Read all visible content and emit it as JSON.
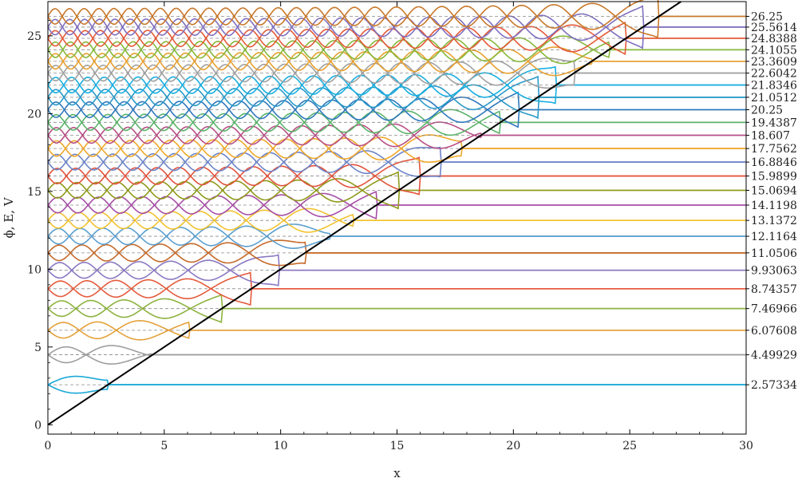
{
  "chart_data": {
    "type": "line",
    "title": "",
    "xlabel": "x",
    "ylabel": "ϕ, E, V",
    "xlim": [
      0,
      30
    ],
    "ylim": [
      -0.6,
      27.2
    ],
    "xticks": [
      "0",
      "5",
      "10",
      "15",
      "20",
      "25",
      "30"
    ],
    "yticks": [
      "0",
      "5",
      "10",
      "15",
      "20",
      "25"
    ],
    "potential": {
      "type": "linear",
      "x": [
        0,
        27.2
      ],
      "y": [
        0,
        27.2
      ],
      "color": "#000000"
    },
    "energy_levels": [
      {
        "label": "2.57334",
        "value": 2.57334,
        "color": "#1aa8d8"
      },
      {
        "label": "4.49929",
        "value": 4.49929,
        "color": "#9e9e9e"
      },
      {
        "label": "6.07608",
        "value": 6.07608,
        "color": "#e5a13a"
      },
      {
        "label": "7.46966",
        "value": 7.46966,
        "color": "#8db33f"
      },
      {
        "label": "8.74357",
        "value": 8.74357,
        "color": "#e55a3c"
      },
      {
        "label": "9.93063",
        "value": 9.93063,
        "color": "#8a78c2"
      },
      {
        "label": "11.0506",
        "value": 11.0506,
        "color": "#c56a2a"
      },
      {
        "label": "12.1164",
        "value": 12.1164,
        "color": "#5b9fce"
      },
      {
        "label": "13.1372",
        "value": 13.1372,
        "color": "#f2c230"
      },
      {
        "label": "14.1198",
        "value": 14.1198,
        "color": "#a64ea6"
      },
      {
        "label": "15.0694",
        "value": 15.0694,
        "color": "#8f9a1a"
      },
      {
        "label": "15.9899",
        "value": 15.9899,
        "color": "#e2533c"
      },
      {
        "label": "16.8846",
        "value": 16.8846,
        "color": "#6c84c8"
      },
      {
        "label": "17.7562",
        "value": 17.7562,
        "color": "#f0a82a"
      },
      {
        "label": "18.607",
        "value": 18.607,
        "color": "#b84f86"
      },
      {
        "label": "19.4387",
        "value": 19.4387,
        "color": "#5bb36a"
      },
      {
        "label": "20.25",
        "value": 20.25,
        "color": "#2f79bd"
      },
      {
        "label": "21.0512",
        "value": 21.0512,
        "color": "#2a9ac8"
      },
      {
        "label": "21.8346",
        "value": 21.8346,
        "color": "#18aee0"
      },
      {
        "label": "22.6042",
        "value": 22.6042,
        "color": "#a0a0a0"
      },
      {
        "label": "23.3609",
        "value": 23.3609,
        "color": "#e8a030"
      },
      {
        "label": "24.1055",
        "value": 24.1055,
        "color": "#86b83a"
      },
      {
        "label": "24.8388",
        "value": 24.8388,
        "color": "#e45a38"
      },
      {
        "label": "25.5614",
        "value": 25.5614,
        "color": "#8070c0"
      },
      {
        "label": "26.25",
        "value": 26.25,
        "color": "#c8782a"
      }
    ],
    "grid": false,
    "reference_lines": "dashed gray at each energy level"
  }
}
